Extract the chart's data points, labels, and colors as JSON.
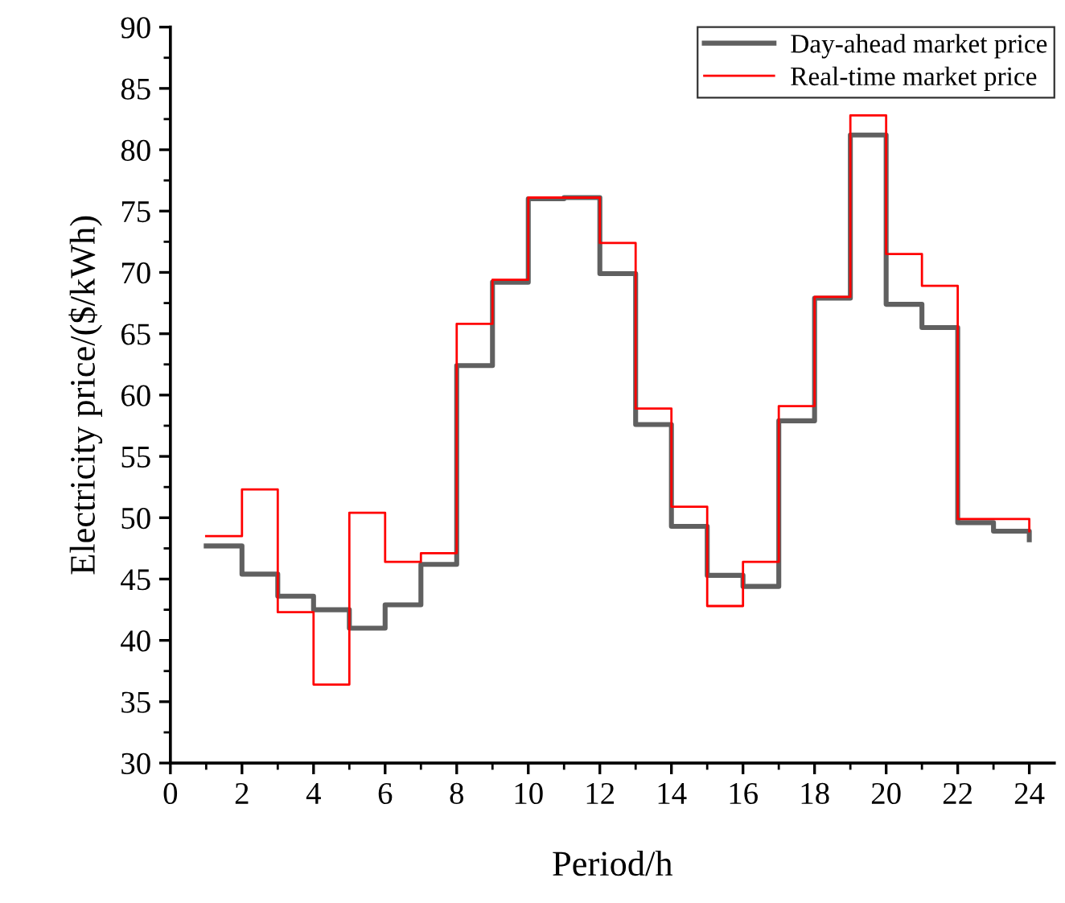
{
  "chart_data": {
    "type": "step",
    "xlabel": "Period/h",
    "ylabel": "Electricity price/($/kWh)",
    "x": [
      1,
      2,
      3,
      4,
      5,
      6,
      7,
      8,
      9,
      10,
      11,
      12,
      13,
      14,
      15,
      16,
      17,
      18,
      19,
      20,
      21,
      22,
      23,
      24
    ],
    "series": [
      {
        "name": "Day-ahead market price",
        "color": "#606060",
        "values": [
          47.7,
          45.4,
          43.6,
          42.5,
          41.0,
          42.9,
          46.2,
          62.4,
          69.2,
          76.0,
          76.1,
          69.9,
          57.6,
          49.3,
          45.3,
          44.4,
          57.9,
          67.9,
          81.2,
          67.4,
          65.5,
          49.6,
          48.9,
          48.2
        ]
      },
      {
        "name": "Real-time market price",
        "color": "#ff0000",
        "values": [
          48.5,
          52.3,
          42.3,
          36.4,
          50.4,
          46.4,
          47.1,
          65.8,
          69.4,
          76.1,
          76.1,
          72.4,
          58.9,
          50.9,
          42.8,
          46.4,
          59.1,
          68.0,
          82.8,
          71.5,
          68.9,
          49.9,
          49.9,
          48.9
        ]
      }
    ],
    "xlim": [
      0,
      24.7
    ],
    "xticks": [
      0,
      2,
      4,
      6,
      8,
      10,
      12,
      14,
      16,
      18,
      20,
      22,
      24
    ],
    "ylim": [
      30,
      90
    ],
    "yticks": [
      30,
      35,
      40,
      45,
      50,
      55,
      60,
      65,
      70,
      75,
      80,
      85,
      90
    ],
    "legend": "top right",
    "grid": false
  }
}
